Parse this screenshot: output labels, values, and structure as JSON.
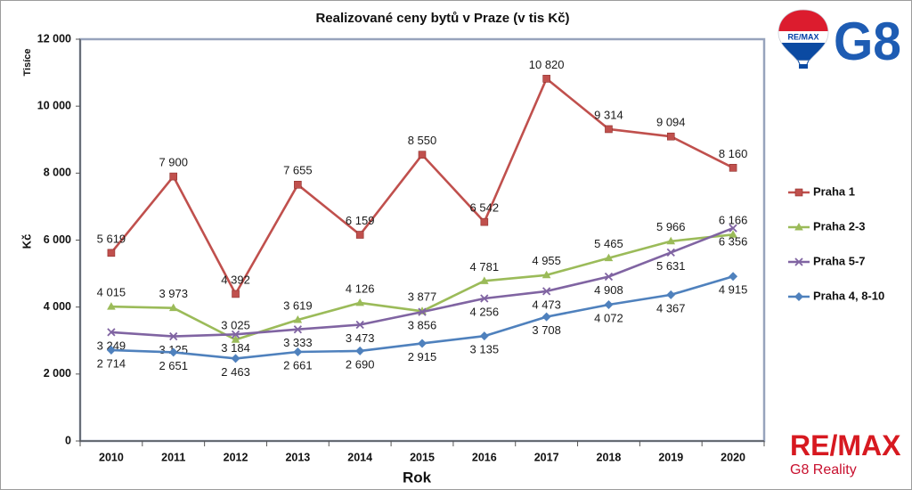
{
  "chart_data": {
    "type": "line",
    "title": "Realizované ceny bytů v Praze (v tis Kč)",
    "xlabel": "Rok",
    "ylabel": "Kč",
    "yunit_label": "Tisíce",
    "categories": [
      "2010",
      "2011",
      "2012",
      "2013",
      "2014",
      "2015",
      "2016",
      "2017",
      "2018",
      "2019",
      "2020"
    ],
    "ylim": [
      0,
      12000
    ],
    "yticks": [
      {
        "value": 0,
        "label": "0"
      },
      {
        "value": 2000,
        "label": "2 000"
      },
      {
        "value": 4000,
        "label": "4 000"
      },
      {
        "value": 6000,
        "label": "6 000"
      },
      {
        "value": 8000,
        "label": "8 000"
      },
      {
        "value": 10000,
        "label": "10 000"
      },
      {
        "value": 12000,
        "label": "12 000"
      }
    ],
    "grid": false,
    "legend": "right",
    "series": [
      {
        "name": "Praha 1",
        "color": "#c0504d",
        "marker": "square",
        "label_position": "above",
        "values": [
          5619,
          7900,
          4392,
          7655,
          6159,
          8550,
          6542,
          10820,
          9314,
          9094,
          8160
        ],
        "labels": [
          "5 619",
          "7 900",
          "4 392",
          "7 655",
          "6 159",
          "8 550",
          "6 542",
          "10 820",
          "9 314",
          "9 094",
          "8 160"
        ]
      },
      {
        "name": "Praha 2-3",
        "color": "#9bbb59",
        "marker": "triangle",
        "label_position": "above",
        "values": [
          4015,
          3973,
          3025,
          3619,
          4126,
          3877,
          4781,
          4955,
          5465,
          5966,
          6166
        ],
        "labels": [
          "4 015",
          "3 973",
          "3 025",
          "3 619",
          "4 126",
          "3 877",
          "4 781",
          "4 955",
          "5 465",
          "5 966",
          "6 166"
        ]
      },
      {
        "name": "Praha 5-7",
        "color": "#8064a2",
        "marker": "x",
        "label_position": "below",
        "values": [
          3249,
          3125,
          3184,
          3333,
          3473,
          3856,
          4256,
          4473,
          4908,
          5631,
          6356
        ],
        "labels": [
          "3 249",
          "3 125",
          "3 184",
          "3 333",
          "3 473",
          "3 856",
          "4 256",
          "4 473",
          "4 908",
          "5 631",
          "6 356"
        ]
      },
      {
        "name": "Praha 4, 8-10",
        "color": "#4f81bd",
        "marker": "diamond",
        "label_position": "below",
        "values": [
          2714,
          2651,
          2463,
          2661,
          2690,
          2915,
          3135,
          3708,
          4072,
          4367,
          4915
        ],
        "labels": [
          "2 714",
          "2 651",
          "2 463",
          "2 661",
          "2 690",
          "2 915",
          "3 135",
          "3 708",
          "4 072",
          "4 367",
          "4 915"
        ]
      }
    ]
  },
  "logos": {
    "balloon": "RE/MAX",
    "g8": "G8",
    "wordmark": "RE/MAX",
    "tagline": "G8 Reality"
  }
}
